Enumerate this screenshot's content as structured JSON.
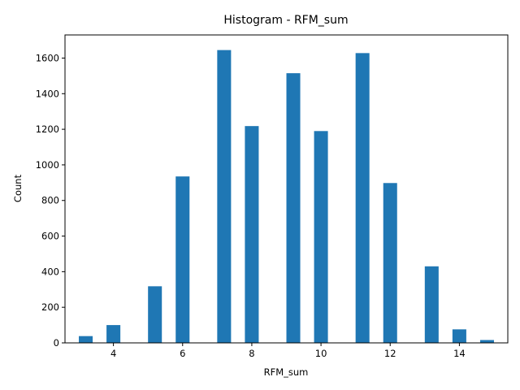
{
  "chart_data": {
    "type": "bar",
    "title": "Histogram - RFM_sum",
    "xlabel": "RFM_sum",
    "ylabel": "Count",
    "xlim": [
      2.6,
      15.4
    ],
    "ylim": [
      0,
      1730
    ],
    "xticks": [
      4,
      6,
      8,
      10,
      12,
      14
    ],
    "yticks": [
      0,
      200,
      400,
      600,
      800,
      1000,
      1200,
      1400,
      1600
    ],
    "bar_color": "#1f77b4",
    "grid": false,
    "bars": [
      {
        "x0": 3.0,
        "x1": 3.4,
        "value": 38
      },
      {
        "x0": 3.8,
        "x1": 4.2,
        "value": 100
      },
      {
        "x0": 5.0,
        "x1": 5.4,
        "value": 318
      },
      {
        "x0": 5.8,
        "x1": 6.2,
        "value": 935
      },
      {
        "x0": 7.0,
        "x1": 7.4,
        "value": 1645
      },
      {
        "x0": 7.8,
        "x1": 8.2,
        "value": 1218
      },
      {
        "x0": 9.0,
        "x1": 9.4,
        "value": 1515
      },
      {
        "x0": 9.8,
        "x1": 10.2,
        "value": 1190
      },
      {
        "x0": 11.0,
        "x1": 11.4,
        "value": 1628
      },
      {
        "x0": 11.8,
        "x1": 12.2,
        "value": 898
      },
      {
        "x0": 13.0,
        "x1": 13.4,
        "value": 430
      },
      {
        "x0": 13.8,
        "x1": 14.2,
        "value": 76
      },
      {
        "x0": 14.6,
        "x1": 15.0,
        "value": 16
      }
    ]
  }
}
